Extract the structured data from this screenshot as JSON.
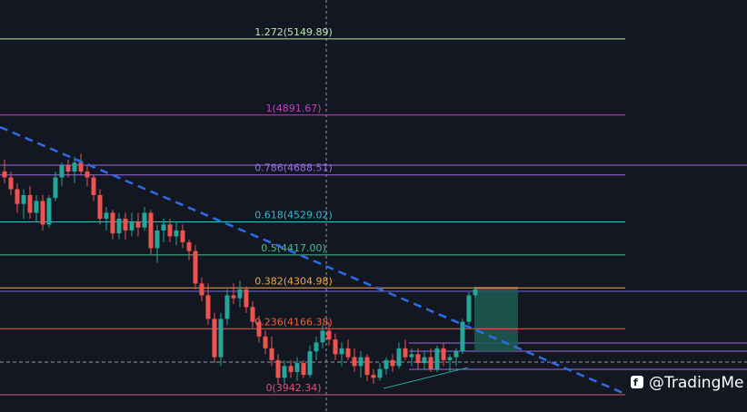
{
  "chart_data": {
    "type": "candlestick",
    "ylim": [
      3884,
      5282
    ],
    "up_color": "#26a69a",
    "down_color": "#ef5350",
    "fib_levels": [
      {
        "value": 5149.89,
        "label": "1.272(5149.89)",
        "color": "#b9e8b0"
      },
      {
        "value": 4891.67,
        "label": "1(4891.67)",
        "color": "#c23fc0"
      },
      {
        "value": 4688.51,
        "label": "0.786(4688.51)",
        "color": "#9a6be0"
      },
      {
        "value": 4529.02,
        "label": "0.618(4529.02)",
        "color": "#3fb4cc"
      },
      {
        "value": 4417.0,
        "label": "0.5(4417.00)",
        "color": "#4cbf8a"
      },
      {
        "value": 4304.98,
        "label": "0.382(4304.98)",
        "color": "#f0a84a"
      },
      {
        "value": 4166.38,
        "label": "0.236(4166.38)",
        "color": "#f0603a"
      },
      {
        "value": 3942.34,
        "label": "0(3942.34)",
        "color": "#e0507a"
      }
    ],
    "ohlc": [
      [
        4700,
        4740,
        4660,
        4680
      ],
      [
        4680,
        4700,
        4620,
        4640
      ],
      [
        4640,
        4660,
        4560,
        4590
      ],
      [
        4590,
        4640,
        4540,
        4620
      ],
      [
        4620,
        4650,
        4540,
        4560
      ],
      [
        4560,
        4620,
        4530,
        4600
      ],
      [
        4600,
        4620,
        4500,
        4520
      ],
      [
        4520,
        4620,
        4510,
        4610
      ],
      [
        4610,
        4700,
        4600,
        4680
      ],
      [
        4680,
        4730,
        4650,
        4720
      ],
      [
        4720,
        4740,
        4680,
        4700
      ],
      [
        4700,
        4750,
        4660,
        4730
      ],
      [
        4730,
        4760,
        4690,
        4700
      ],
      [
        4700,
        4720,
        4650,
        4680
      ],
      [
        4680,
        4690,
        4600,
        4620
      ],
      [
        4620,
        4640,
        4520,
        4540
      ],
      [
        4540,
        4580,
        4500,
        4560
      ],
      [
        4560,
        4570,
        4470,
        4490
      ],
      [
        4490,
        4560,
        4470,
        4540
      ],
      [
        4540,
        4560,
        4470,
        4500
      ],
      [
        4500,
        4560,
        4480,
        4530
      ],
      [
        4530,
        4560,
        4480,
        4510
      ],
      [
        4510,
        4580,
        4500,
        4560
      ],
      [
        4560,
        4570,
        4420,
        4440
      ],
      [
        4440,
        4520,
        4390,
        4500
      ],
      [
        4500,
        4540,
        4460,
        4520
      ],
      [
        4520,
        4540,
        4460,
        4480
      ],
      [
        4480,
        4530,
        4450,
        4500
      ],
      [
        4500,
        4520,
        4440,
        4460
      ],
      [
        4460,
        4470,
        4400,
        4430
      ],
      [
        4430,
        4450,
        4300,
        4320
      ],
      [
        4320,
        4340,
        4260,
        4280
      ],
      [
        4280,
        4320,
        4180,
        4200
      ],
      [
        4200,
        4220,
        4050,
        4070
      ],
      [
        4070,
        4220,
        4040,
        4200
      ],
      [
        4200,
        4300,
        4180,
        4280
      ],
      [
        4280,
        4320,
        4250,
        4270
      ],
      [
        4270,
        4330,
        4240,
        4300
      ],
      [
        4300,
        4310,
        4220,
        4240
      ],
      [
        4240,
        4260,
        4170,
        4190
      ],
      [
        4190,
        4210,
        4120,
        4140
      ],
      [
        4140,
        4160,
        4080,
        4100
      ],
      [
        4100,
        4140,
        4040,
        4060
      ],
      [
        4060,
        4080,
        3980,
        4000
      ],
      [
        4000,
        4060,
        3980,
        4040
      ],
      [
        4040,
        4060,
        4000,
        4020
      ],
      [
        4020,
        4070,
        3990,
        4050
      ],
      [
        4050,
        4060,
        4000,
        4010
      ],
      [
        4010,
        4110,
        4000,
        4090
      ],
      [
        4090,
        4140,
        4060,
        4120
      ],
      [
        4120,
        4180,
        4100,
        4160
      ],
      [
        4160,
        4190,
        4110,
        4130
      ],
      [
        4130,
        4150,
        4060,
        4080
      ],
      [
        4080,
        4120,
        4040,
        4100
      ],
      [
        4100,
        4130,
        4060,
        4070
      ],
      [
        4070,
        4100,
        4020,
        4040
      ],
      [
        4040,
        4090,
        4000,
        4070
      ],
      [
        4070,
        4080,
        3990,
        4010
      ],
      [
        4010,
        4030,
        3980,
        4000
      ],
      [
        4000,
        4050,
        3990,
        4030
      ],
      [
        4030,
        4070,
        4010,
        4060
      ],
      [
        4060,
        4080,
        4020,
        4040
      ],
      [
        4040,
        4120,
        4030,
        4100
      ],
      [
        4100,
        4130,
        4060,
        4070
      ],
      [
        4070,
        4100,
        4040,
        4080
      ],
      [
        4080,
        4100,
        4030,
        4050
      ],
      [
        4050,
        4090,
        4030,
        4070
      ],
      [
        4070,
        4100,
        4020,
        4030
      ],
      [
        4030,
        4110,
        4020,
        4100
      ],
      [
        4100,
        4120,
        4040,
        4060
      ],
      [
        4060,
        4080,
        4020,
        4070
      ],
      [
        4070,
        4100,
        4040,
        4090
      ],
      [
        4090,
        4200,
        4080,
        4190
      ],
      [
        4190,
        4290,
        4180,
        4280
      ],
      [
        4280,
        4310,
        4270,
        4300
      ]
    ],
    "watermark": "@TradingMe"
  }
}
